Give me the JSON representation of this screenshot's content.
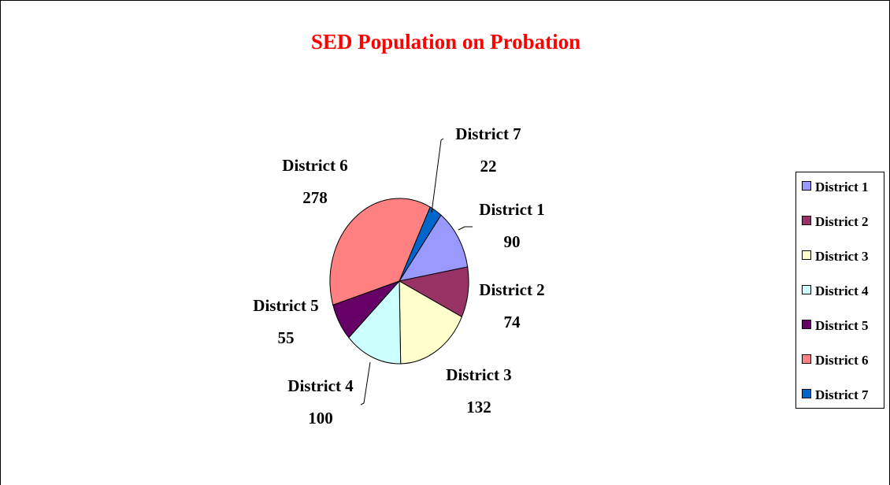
{
  "chart_data": {
    "type": "pie",
    "title": "SED Population on Probation",
    "categories": [
      "District 1",
      "District 2",
      "District 3",
      "District 4",
      "District 5",
      "District 6",
      "District 7"
    ],
    "values": [
      90,
      74,
      132,
      100,
      55,
      278,
      22
    ],
    "colors": [
      "#9999ff",
      "#993366",
      "#ffffcc",
      "#ccffff",
      "#660066",
      "#ff8080",
      "#0066cc"
    ],
    "legend": "right"
  }
}
